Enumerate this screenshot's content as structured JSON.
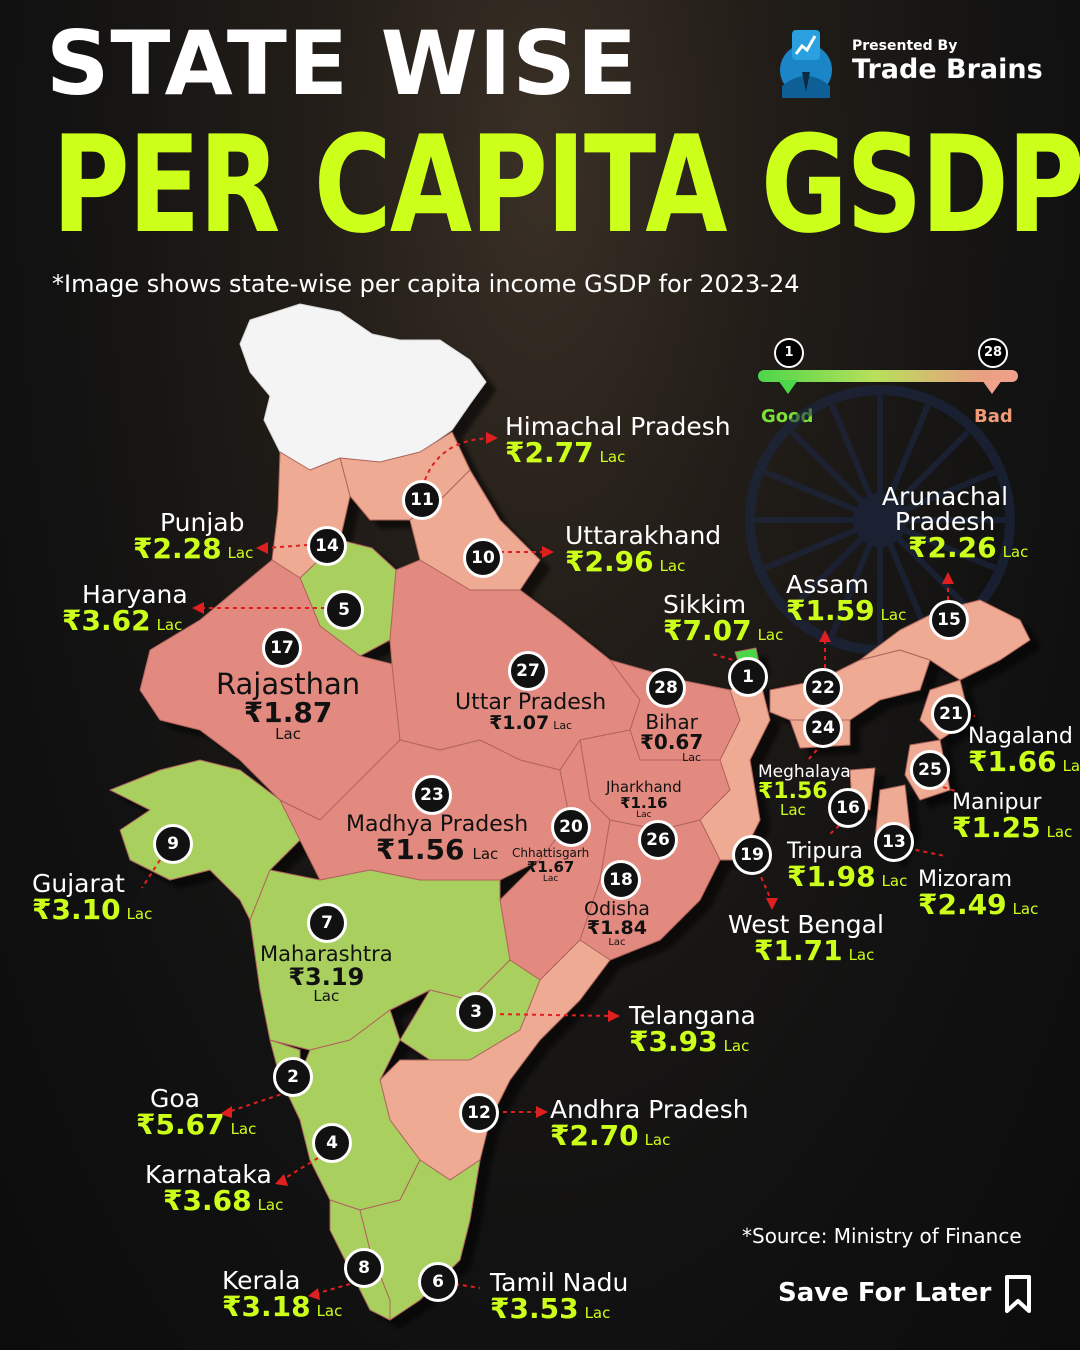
{
  "header": {
    "title_line1": "STATE WISE",
    "title_line2": "PER CAPITA GSDP",
    "subtitle": "*Image shows state-wise per capita income GSDP for 2023-24"
  },
  "brand": {
    "presented_by": "Presented By",
    "name": "Trade Brains"
  },
  "legend": {
    "rank_first": "1",
    "rank_last": "28",
    "good_label": "Good",
    "bad_label": "Bad",
    "good_color": "#4cd64a",
    "bad_color": "#f0a28a"
  },
  "colors": {
    "green_region": "#a9cf5e",
    "light_red_region": "#eeaa92",
    "red_region": "#e38a80",
    "unranked_region": "#f4f4f4",
    "value_color": "#ccff1a"
  },
  "states": [
    {
      "rank": "1",
      "name": "Sikkim",
      "value": "₹7.07",
      "unit": "Lac"
    },
    {
      "rank": "2",
      "name": "Goa",
      "value": "₹5.67",
      "unit": "Lac"
    },
    {
      "rank": "3",
      "name": "Telangana",
      "value": "₹3.93",
      "unit": "Lac"
    },
    {
      "rank": "4",
      "name": "Karnataka",
      "value": "₹3.68",
      "unit": "Lac"
    },
    {
      "rank": "5",
      "name": "Haryana",
      "value": "₹3.62",
      "unit": "Lac"
    },
    {
      "rank": "6",
      "name": "Tamil Nadu",
      "value": "₹3.53",
      "unit": "Lac"
    },
    {
      "rank": "7",
      "name": "Maharashtra",
      "value": "₹3.19",
      "unit": "Lac"
    },
    {
      "rank": "8",
      "name": "Kerala",
      "value": "₹3.18",
      "unit": "Lac"
    },
    {
      "rank": "9",
      "name": "Gujarat",
      "value": "₹3.10",
      "unit": "Lac"
    },
    {
      "rank": "10",
      "name": "Uttarakhand",
      "value": "₹2.96",
      "unit": "Lac"
    },
    {
      "rank": "11",
      "name": "Himachal Pradesh",
      "value": "₹2.77",
      "unit": "Lac"
    },
    {
      "rank": "12",
      "name": "Andhra Pradesh",
      "value": "₹2.70",
      "unit": "Lac"
    },
    {
      "rank": "13",
      "name": "Mizoram",
      "value": "₹2.49",
      "unit": "Lac"
    },
    {
      "rank": "14",
      "name": "Punjab",
      "value": "₹2.28",
      "unit": "Lac"
    },
    {
      "rank": "15",
      "name": "Arunachal Pradesh",
      "value": "₹2.26",
      "unit": "Lac"
    },
    {
      "rank": "16",
      "name": "Tripura",
      "value": "₹1.98",
      "unit": "Lac"
    },
    {
      "rank": "17",
      "name": "Rajasthan",
      "value": "₹1.87",
      "unit": "Lac"
    },
    {
      "rank": "18",
      "name": "Odisha",
      "value": "₹1.84",
      "unit": "Lac"
    },
    {
      "rank": "19",
      "name": "West Bengal",
      "value": "₹1.71",
      "unit": "Lac"
    },
    {
      "rank": "20",
      "name": "Chhattisgarh",
      "value": "₹1.67",
      "unit": "Lac"
    },
    {
      "rank": "21",
      "name": "Nagaland",
      "value": "₹1.66",
      "unit": "Lac"
    },
    {
      "rank": "22",
      "name": "Assam",
      "value": "₹1.59",
      "unit": "Lac"
    },
    {
      "rank": "23",
      "name": "Madhya Pradesh",
      "value": "₹1.56",
      "unit": "Lac"
    },
    {
      "rank": "24",
      "name": "Meghalaya",
      "value": "₹1.56",
      "unit": "Lac"
    },
    {
      "rank": "25",
      "name": "Manipur",
      "value": "₹1.25",
      "unit": "Lac"
    },
    {
      "rank": "26",
      "name": "Jharkhand",
      "value": "₹1.16",
      "unit": "Lac"
    },
    {
      "rank": "27",
      "name": "Uttar Pradesh",
      "value": "₹1.07",
      "unit": "Lac"
    },
    {
      "rank": "28",
      "name": "Bihar",
      "value": "₹0.67",
      "unit": "Lac"
    }
  ],
  "footer": {
    "source": "*Source: Ministry of Finance",
    "save": "Save For Later"
  }
}
